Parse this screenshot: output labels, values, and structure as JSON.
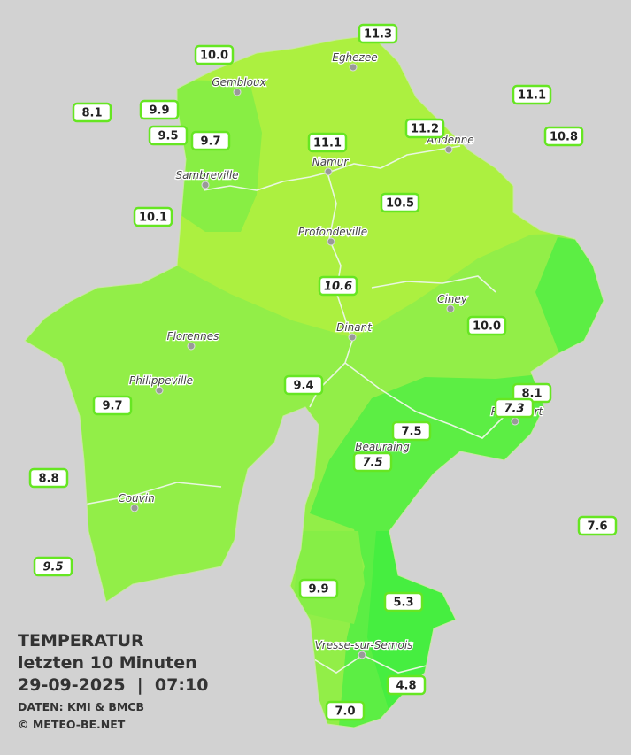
{
  "title": {
    "line1": "TEMPERATUR",
    "line2": "letzten 10 Minuten",
    "line3": "29-09-2025  |  07:10",
    "source": "DATEN: KMI & BMCB",
    "copyright": "© METEO-BE.NET"
  },
  "cities": [
    "Eghezee",
    "Gembloux",
    "Andenne",
    "Namur",
    "Sambreville",
    "Profondeville",
    "Ciney",
    "Dinant",
    "Florennes",
    "Philippeville",
    "Beauraing",
    "Rochefort",
    "Couvin",
    "Vresse-sur-Semois"
  ],
  "stations": [
    "11.3",
    "10.0",
    "11.1",
    "8.1",
    "9.9",
    "11.2",
    "10.8",
    "9.5",
    "9.7",
    "11.1",
    "10.5",
    "10.1",
    "10.6",
    "10.0",
    "9.4",
    "8.1",
    "7.3",
    "9.7",
    "7.5",
    "7.5",
    "8.8",
    "7.6",
    "9.5",
    "9.9",
    "5.3",
    "4.8",
    "7.0"
  ]
}
